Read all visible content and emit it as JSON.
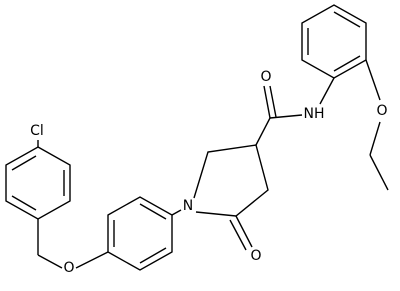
{
  "molecule": {
    "atoms": {
      "chlorine": "Cl",
      "ether_oxygen": "O",
      "ring_nitrogen": "N",
      "lactam_oxygen": "O",
      "amide_oxygen": "O",
      "amide_nitrogen": "NH",
      "ethoxy_oxygen": "O"
    }
  }
}
